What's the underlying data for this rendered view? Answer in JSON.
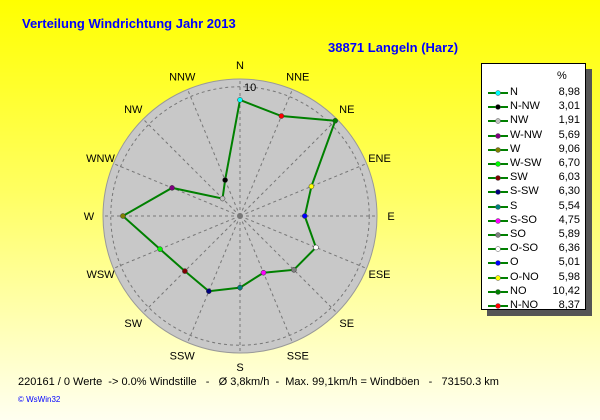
{
  "title": "Verteilung Windrichtung   Jahr 2013",
  "subtitle": "38871 Langeln (Harz)",
  "footer": "220161 / 0 Werte  -> 0.0% Windstille   -   Ø 3,8km/h  -  Max. 99,1km/h = Windböen   -   73150.3 km",
  "copyright": "© WsWin32",
  "chart_data": {
    "type": "radar",
    "title": "Verteilung Windrichtung   Jahr 2013",
    "axis_labels": [
      "N",
      "NNE",
      "NE",
      "ENE",
      "E",
      "ESE",
      "SE",
      "SSE",
      "S",
      "SSW",
      "SW",
      "WSW",
      "W",
      "WNW",
      "NW",
      "NNW"
    ],
    "values": [
      8.98,
      8.37,
      10.42,
      5.98,
      5.01,
      6.36,
      5.89,
      4.75,
      5.54,
      6.3,
      6.03,
      6.7,
      9.06,
      5.69,
      1.91,
      3.01
    ],
    "radial_tick": "10",
    "rmax": 10.6,
    "line_color": "#008000",
    "disk_color": "#c8c8c8",
    "legend_header": "%",
    "legend": [
      {
        "name": "N",
        "value": "8,98",
        "color": "#00ffff"
      },
      {
        "name": "N-NW",
        "value": "3,01",
        "color": "#000000"
      },
      {
        "name": "NW",
        "value": "1,91",
        "color": "#c0c0c0"
      },
      {
        "name": "W-NW",
        "value": "5,69",
        "color": "#800080"
      },
      {
        "name": "W",
        "value": "9,06",
        "color": "#808000"
      },
      {
        "name": "W-SW",
        "value": "6,70",
        "color": "#00ff00"
      },
      {
        "name": "SW",
        "value": "6,03",
        "color": "#800000"
      },
      {
        "name": "S-SW",
        "value": "6,30",
        "color": "#000080"
      },
      {
        "name": "S",
        "value": "5,54",
        "color": "#008080"
      },
      {
        "name": "S-SO",
        "value": "4,75",
        "color": "#ff00ff"
      },
      {
        "name": "SO",
        "value": "5,89",
        "color": "#808080"
      },
      {
        "name": "O-SO",
        "value": "6,36",
        "color": "#ffffff"
      },
      {
        "name": "O",
        "value": "5,01",
        "color": "#0000ff"
      },
      {
        "name": "O-NO",
        "value": "5,98",
        "color": "#ffff00"
      },
      {
        "name": "NO",
        "value": "10,42",
        "color": "#008000"
      },
      {
        "name": "N-NO",
        "value": "8,37",
        "color": "#ff0000"
      }
    ],
    "point_colors": [
      "#00ffff",
      "#ff0000",
      "#008000",
      "#ffff00",
      "#0000ff",
      "#ffffff",
      "#808080",
      "#ff00ff",
      "#008080",
      "#000080",
      "#800000",
      "#00ff00",
      "#808000",
      "#800080",
      "#c0c0c0",
      "#000000"
    ]
  }
}
